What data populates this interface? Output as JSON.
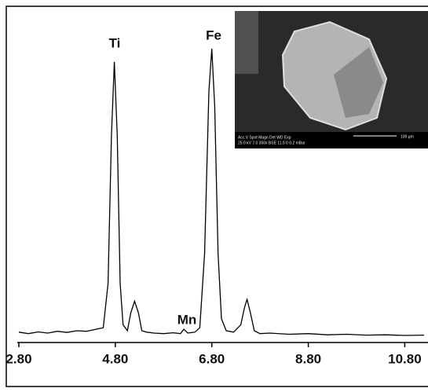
{
  "chart_data": {
    "type": "line",
    "x": [
      2.8,
      3.0,
      3.2,
      3.4,
      3.6,
      3.8,
      4.0,
      4.2,
      4.4,
      4.55,
      4.65,
      4.72,
      4.78,
      4.84,
      4.9,
      4.96,
      5.05,
      5.12,
      5.2,
      5.28,
      5.35,
      5.45,
      5.6,
      5.8,
      6.0,
      6.15,
      6.22,
      6.3,
      6.45,
      6.55,
      6.65,
      6.74,
      6.8,
      6.86,
      6.93,
      7.0,
      7.1,
      7.25,
      7.4,
      7.48,
      7.53,
      7.6,
      7.68,
      7.8,
      8.0,
      8.4,
      8.8,
      9.2,
      9.6,
      10.0,
      10.4,
      10.8,
      11.2
    ],
    "values": [
      3.5,
      3.0,
      3.6,
      3.2,
      3.8,
      3.4,
      4.0,
      3.8,
      4.5,
      5,
      20,
      70,
      95,
      70,
      20,
      6,
      4,
      10,
      14,
      10,
      4,
      3.5,
      3.2,
      3.0,
      3.3,
      3.0,
      4.5,
      3.2,
      3.5,
      5,
      30,
      85,
      99.5,
      80,
      30,
      8,
      4,
      3.5,
      6,
      12,
      14.6,
      10,
      4,
      3,
      3.2,
      2.8,
      3.0,
      2.6,
      2.8,
      2.5,
      2.6,
      2.4,
      2.5
    ],
    "color": "#000000",
    "xlim": [
      2.8,
      11.2
    ],
    "ylim": [
      0,
      100
    ],
    "xticks": [
      {
        "value": 2.8,
        "label": "2.80"
      },
      {
        "value": 4.8,
        "label": "4.80"
      },
      {
        "value": 6.8,
        "label": "6.80"
      },
      {
        "value": 8.8,
        "label": "8.80"
      },
      {
        "value": 10.8,
        "label": "10.80"
      }
    ],
    "annotations": [
      "Ti",
      "Fe",
      "Mn"
    ],
    "inset_labels": [
      "Acc.V  Spot Magn    Det  WD  Exp",
      "25.0 kV 7.0  350x    BSE  11.5  0      0.2 mBar",
      "100 µm"
    ]
  }
}
